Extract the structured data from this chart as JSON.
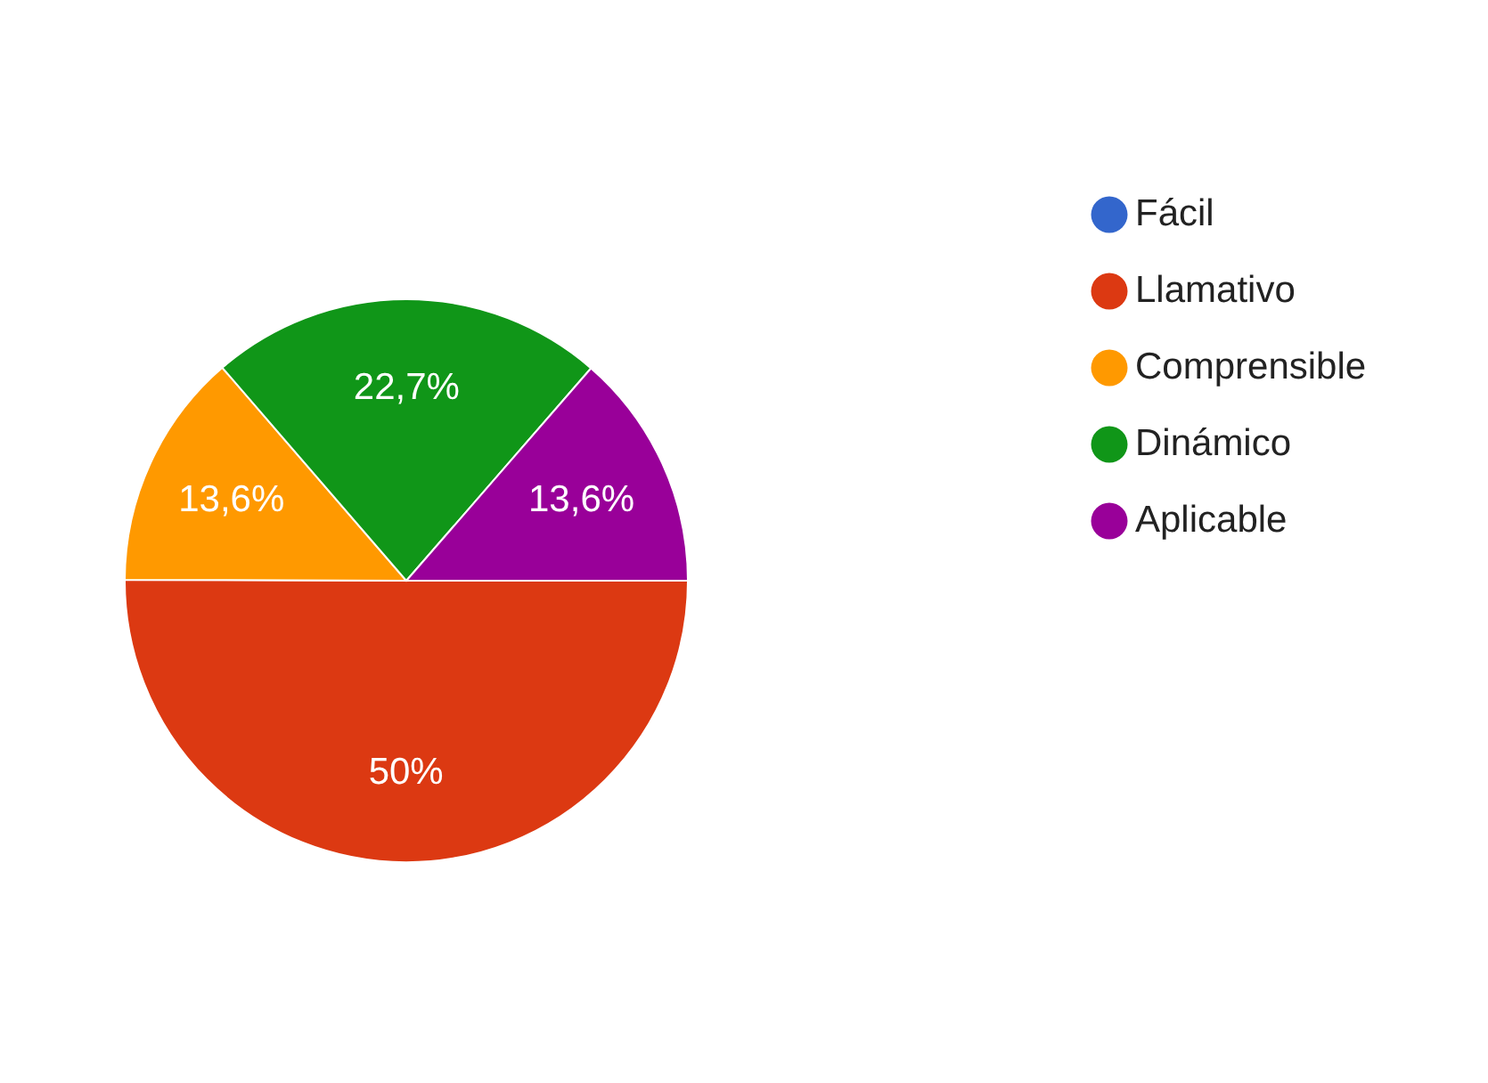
{
  "chart_data": {
    "type": "pie",
    "categories": [
      "Fácil",
      "Llamativo",
      "Comprensible",
      "Dinámico",
      "Aplicable"
    ],
    "values": [
      0,
      50,
      13.6,
      22.7,
      13.6
    ],
    "colors": [
      "#3366cc",
      "#dc3912",
      "#ff9900",
      "#109618",
      "#990099"
    ],
    "value_labels": [
      null,
      "50%",
      "13,6%",
      "22,7%",
      "13,6%"
    ],
    "legend": "right"
  }
}
